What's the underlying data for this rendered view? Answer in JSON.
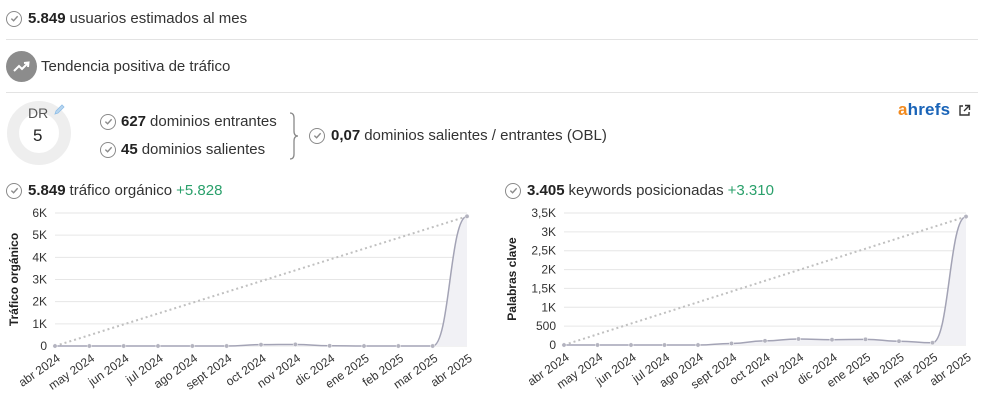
{
  "stats": {
    "users_value": "5.849",
    "users_label": "usuarios estimados al mes",
    "trend_label": "Tendencia positiva de tráfico",
    "dr_label": "DR",
    "dr_value": "5",
    "referring_domains_value": "627",
    "referring_domains_label": "dominios entrantes",
    "linked_domains_value": "45",
    "linked_domains_label": "dominios salientes",
    "obl_value": "0,07",
    "obl_label": "dominios salientes / entrantes (OBL)",
    "brand_a": "a",
    "brand_rest": "hrefs",
    "traffic_value": "5.849",
    "traffic_label": "tráfico orgánico",
    "traffic_delta": "+5.828",
    "keywords_value": "3.405",
    "keywords_label": "keywords posicionadas",
    "keywords_delta": "+3.310"
  },
  "icons": {
    "check": "check-circle-icon",
    "trend": "trending-up-icon",
    "edit": "pencil-icon",
    "external": "external-link-icon",
    "brace": "curly-brace-icon"
  },
  "colors": {
    "positive": "#2aa06b",
    "line": "#a3a3b5",
    "trend_line": "#c0c0c0",
    "brand_orange": "#f28a1e",
    "brand_blue": "#1a64b8"
  },
  "chart_data": [
    {
      "type": "area",
      "ylabel": "Tráfico orgánico",
      "categories": [
        "abr 2024",
        "may 2024",
        "jun 2024",
        "jul 2024",
        "ago 2024",
        "sept 2024",
        "oct 2024",
        "nov 2024",
        "dic 2024",
        "ene 2025",
        "feb 2025",
        "mar 2025",
        "abr 2025"
      ],
      "values": [
        0,
        0,
        0,
        0,
        0,
        0,
        60,
        70,
        10,
        0,
        0,
        0,
        5849
      ],
      "trend_line": [
        0,
        5849
      ],
      "yticks": [
        0,
        1000,
        2000,
        3000,
        4000,
        5000,
        6000
      ],
      "ytick_labels": [
        "0",
        "1K",
        "2K",
        "3K",
        "4K",
        "5K",
        "6K"
      ],
      "ylim": [
        0,
        6000
      ]
    },
    {
      "type": "area",
      "ylabel": "Palabras clave",
      "categories": [
        "abr 2024",
        "may 2024",
        "jun 2024",
        "jul 2024",
        "ago 2024",
        "sept 2024",
        "oct 2024",
        "nov 2024",
        "dic 2024",
        "ene 2025",
        "feb 2025",
        "mar 2025",
        "abr 2025"
      ],
      "values": [
        0,
        0,
        0,
        0,
        0,
        40,
        110,
        160,
        140,
        150,
        100,
        60,
        3405
      ],
      "trend_line": [
        0,
        3405
      ],
      "yticks": [
        0,
        500,
        1000,
        1500,
        2000,
        2500,
        3000,
        3500
      ],
      "ytick_labels": [
        "0",
        "500",
        "1K",
        "1,5K",
        "2K",
        "2,5K",
        "3K",
        "3,5K"
      ],
      "ylim": [
        0,
        3500
      ]
    }
  ]
}
